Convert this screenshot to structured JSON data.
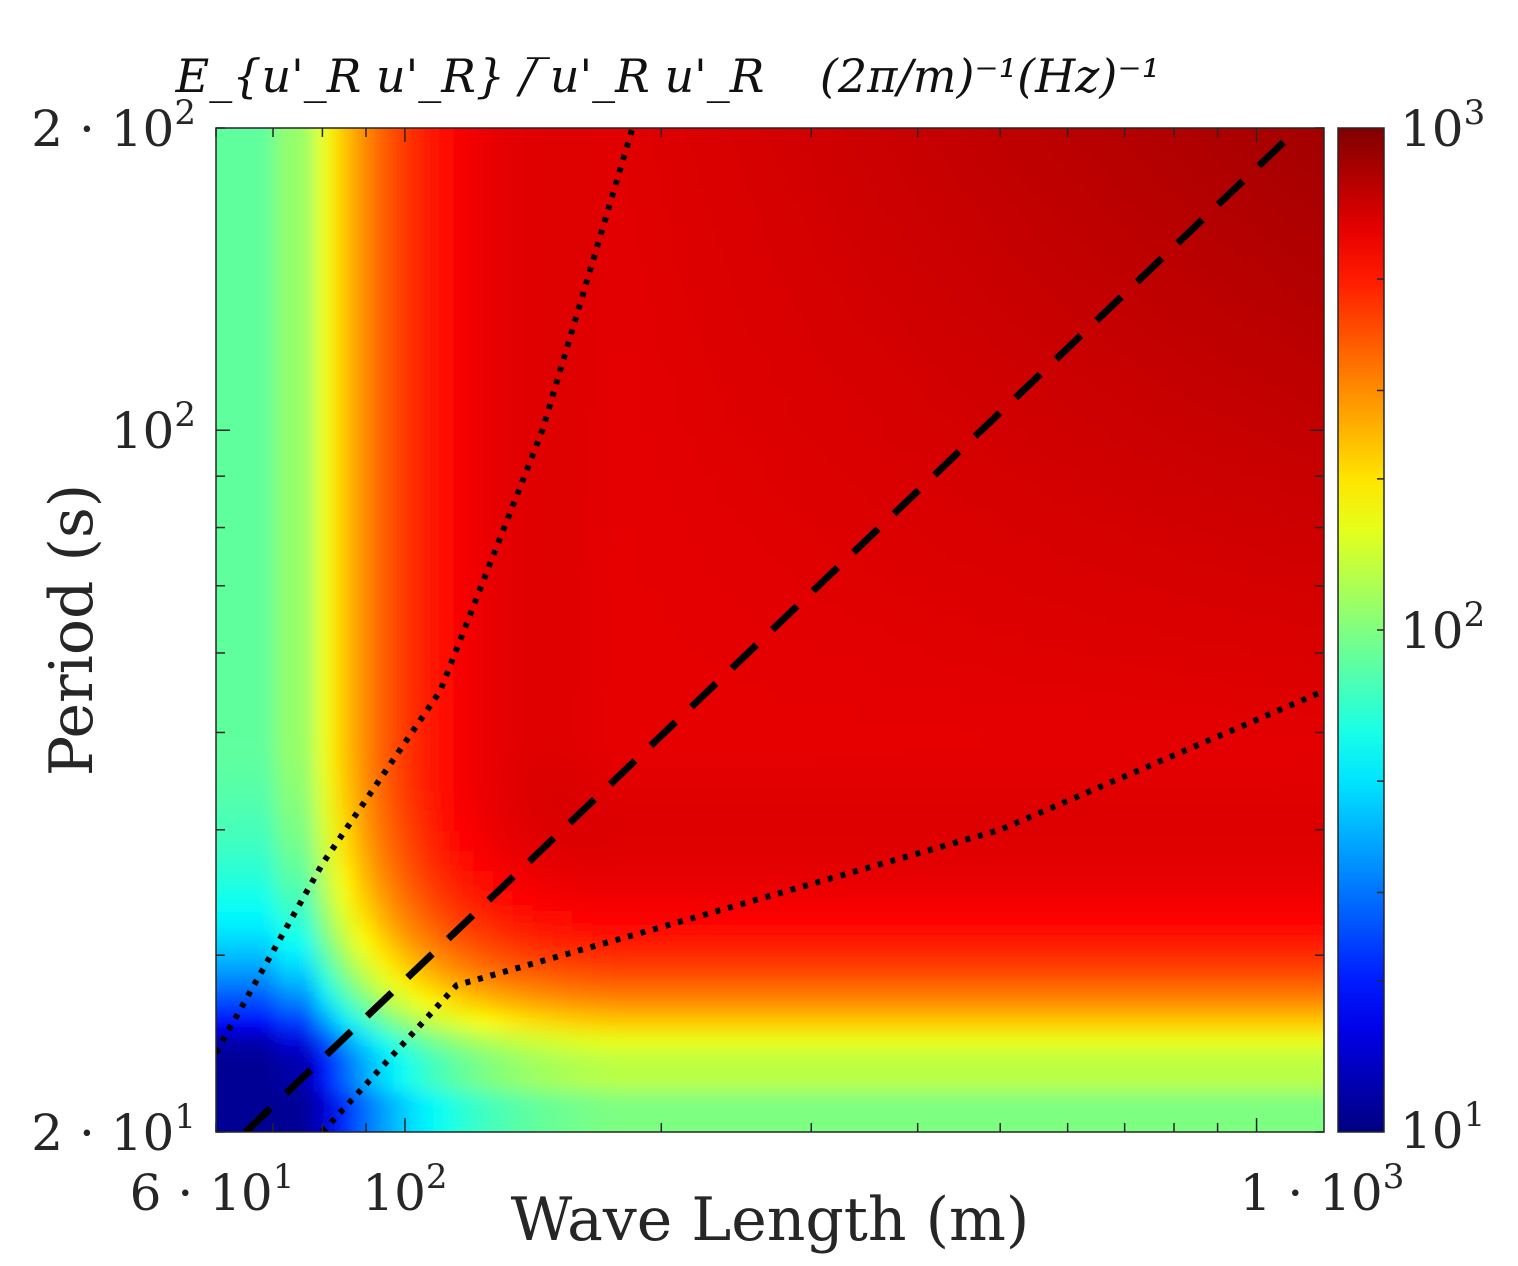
{
  "chart_data": {
    "type": "heatmap",
    "title_quantity": "E_{u'_R u'_R} / ̅u'_R u'_R",
    "title_units": "(2π/m)⁻¹(Hz)⁻¹",
    "xlabel": "Wave Length (m)",
    "ylabel": "Period (s)",
    "xscale": "log",
    "yscale": "log",
    "xlim": [
      60,
      1200
    ],
    "ylim": [
      20,
      200
    ],
    "x_tick_labels": [
      {
        "value": 60,
        "base": "6 · 10",
        "exp": "1"
      },
      {
        "value": 100,
        "base": "10",
        "exp": "2"
      },
      {
        "value": 1000,
        "base": "1 · 10",
        "exp": "3"
      }
    ],
    "y_tick_labels": [
      {
        "value": 20,
        "base": "2 · 10",
        "exp": "1"
      },
      {
        "value": 100,
        "base": "10",
        "exp": "2"
      },
      {
        "value": 200,
        "base": "2 · 10",
        "exp": "2"
      }
    ],
    "colorbar": {
      "scale": "log",
      "range": [
        10,
        1000
      ],
      "colormap": "jet",
      "tick_labels": [
        {
          "value": 10,
          "base": "10",
          "exp": "1"
        },
        {
          "value": 100,
          "base": "10",
          "exp": "2"
        },
        {
          "value": 1000,
          "base": "10",
          "exp": "3"
        }
      ]
    },
    "field_description": "spectral energy peaks (~1000) at long wavelengths and long periods; minimum (~10) at short wavelength/short period",
    "reference_lines": [
      {
        "name": "dashed",
        "style": "dashed",
        "points": [
          [
            65,
            20
          ],
          [
            1120,
            200
          ]
        ]
      },
      {
        "name": "dotted-upper",
        "style": "dotted",
        "points": [
          [
            60,
            24
          ],
          [
            80,
            37
          ],
          [
            110,
            55
          ],
          [
            145,
            100
          ],
          [
            185,
            200
          ]
        ]
      },
      {
        "name": "dotted-lower",
        "style": "dotted",
        "points": [
          [
            80,
            20
          ],
          [
            115,
            28
          ],
          [
            200,
            32
          ],
          [
            500,
            40
          ],
          [
            1200,
            55
          ]
        ]
      }
    ]
  },
  "colors": {
    "dashed_line": "#000000",
    "dotted_line": "#000000",
    "axis": "#262626"
  }
}
